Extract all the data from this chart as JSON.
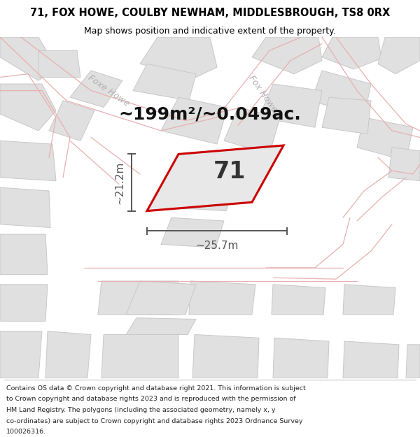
{
  "title": "71, FOX HOWE, COULBY NEWHAM, MIDDLESBROUGH, TS8 0RX",
  "subtitle": "Map shows position and indicative extent of the property.",
  "area_text": "~199m²/~0.049ac.",
  "width_label": "~25.7m",
  "height_label": "~21.2m",
  "property_number": "71",
  "footer_lines": [
    "Contains OS data © Crown copyright and database right 2021. This information is subject",
    "to Crown copyright and database rights 2023 and is reproduced with the permission of",
    "HM Land Registry. The polygons (including the associated geometry, namely x, y",
    "co-ordinates) are subject to Crown copyright and database rights 2023 Ordnance Survey",
    "100026316."
  ],
  "bg_color": "#ffffff",
  "road_stroke": "#e8b0b0",
  "plot_fill": "#e0e0e0",
  "plot_stroke": "#c8c8c8",
  "prop_fill": "#e8e8e8",
  "prop_stroke": "#cc0000",
  "dim_color": "#555555",
  "road_label_color": "#b0b0b0",
  "title_color": "#000000",
  "footer_color": "#222222",
  "title_fontsize": 10.5,
  "subtitle_fontsize": 9.0,
  "area_fontsize": 18,
  "prop_num_fontsize": 24,
  "dim_fontsize": 11,
  "road_label_fontsize": 9,
  "footer_fontsize": 6.8
}
